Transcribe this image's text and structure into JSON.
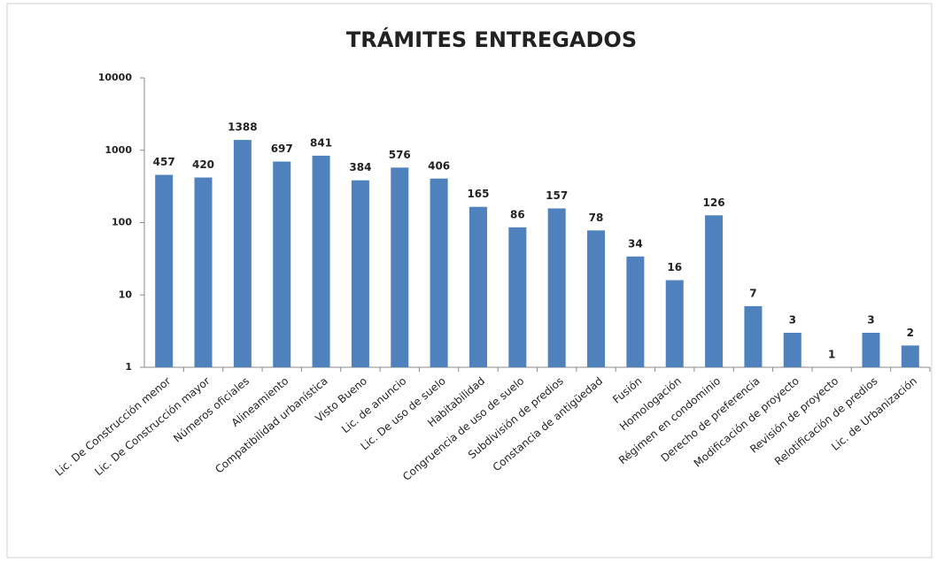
{
  "chart_data": {
    "type": "bar",
    "title": "TRÁMITES ENTREGADOS",
    "categories": [
      "Lic. De Construcción menor",
      "Lic. De Construcción mayor",
      "Números oficiales",
      "Alineamiento",
      "Compatibilidad urbanística",
      "Visto Bueno",
      "Lic. de anuncio",
      "Lic. De uso de suelo",
      "Habitabilidad",
      "Congruencia de uso de suelo",
      "Subdivisión de predios",
      "Constancia de antigüedad",
      "Fusión",
      "Homologación",
      "Régimen en condominio",
      "Derecho de preferencia",
      "Modificación de proyecto",
      "Revisión de proyecto",
      "Relotificación de predios",
      "Lic. de Urbanización"
    ],
    "values": [
      457,
      420,
      1388,
      697,
      841,
      384,
      576,
      406,
      165,
      86,
      157,
      78,
      34,
      16,
      126,
      7,
      3,
      1,
      3,
      2
    ],
    "color": "#4f81bd",
    "log": true,
    "ylim": [
      1,
      10000
    ],
    "yticks": [
      1,
      10,
      100,
      1000,
      10000
    ]
  }
}
